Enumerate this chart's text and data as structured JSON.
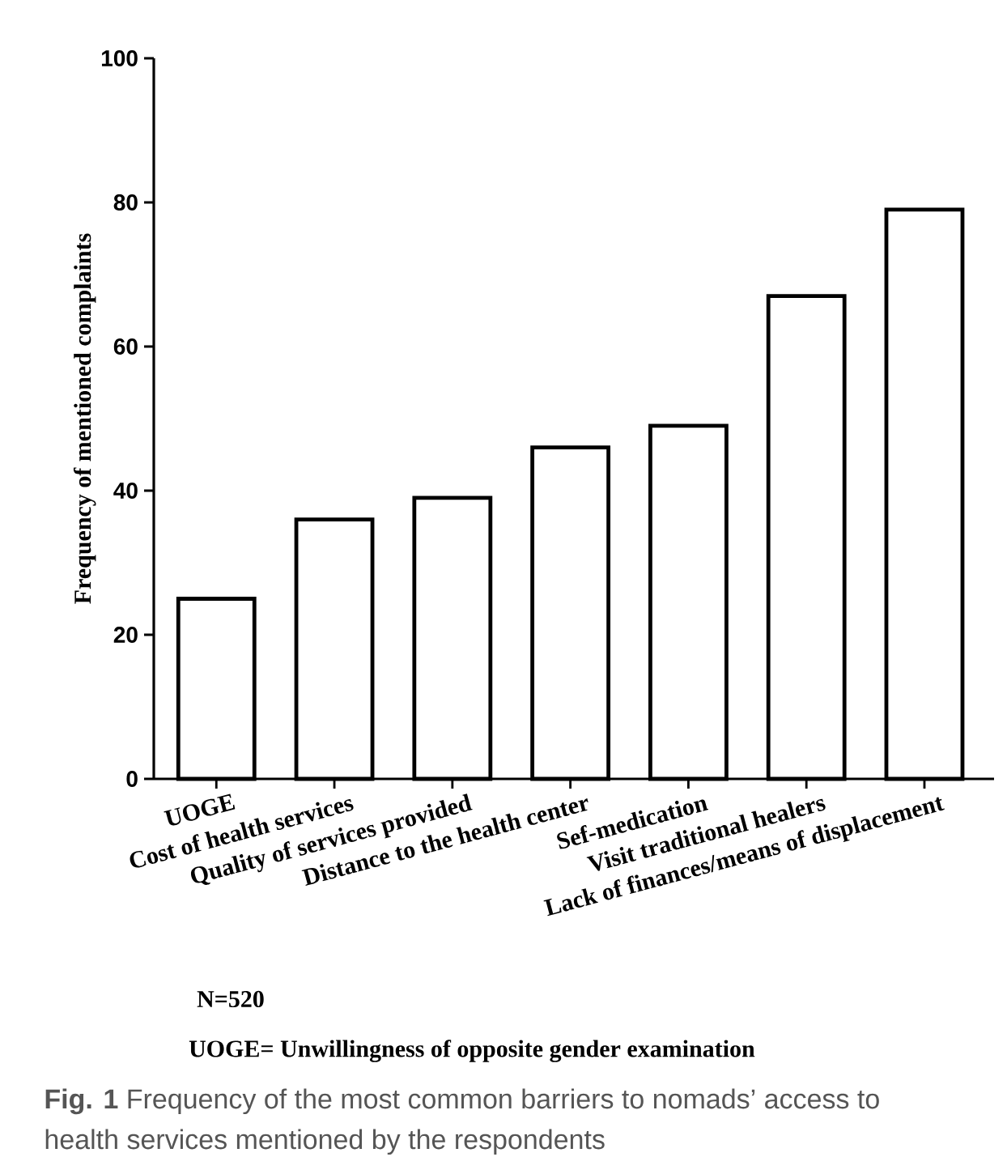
{
  "chart_data": {
    "type": "bar",
    "ylabel": "Frequency of mentioned complaints",
    "categories": [
      "UOGE",
      "Cost of health services",
      "Quality of services provided",
      "Distance to the health center",
      "Sef-medication",
      "Visit traditional healers",
      "Lack of finances/means of displacement"
    ],
    "values": [
      25,
      36,
      39,
      46,
      49,
      67,
      79
    ],
    "color": "#ffffff",
    "ylim": [
      0,
      100
    ],
    "yticks": [
      0,
      20,
      40,
      60,
      80,
      100
    ],
    "grid": false,
    "annotations": [
      "N=520",
      "UOGE= Unwillingness of opposite gender examination",
      "**Fig. 1** Frequency of the most common barriers to nomads’ access to health services mentioned by the respondents"
    ]
  }
}
